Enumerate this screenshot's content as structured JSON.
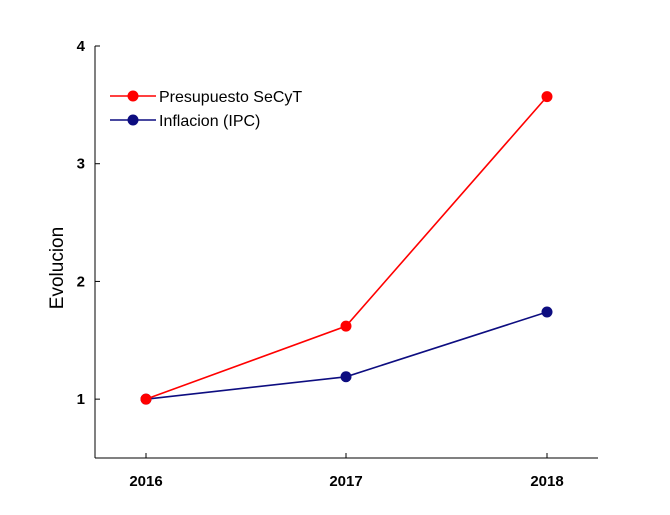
{
  "chart_data": {
    "type": "line",
    "title": "",
    "xlabel": "",
    "ylabel": "Evolucion",
    "x": [
      "2016",
      "2017",
      "2018"
    ],
    "ylim": [
      0.5,
      4
    ],
    "yticks": [
      "1",
      "2",
      "3",
      "4"
    ],
    "grid": false,
    "legend_position": "top-left",
    "series": [
      {
        "name": "Presupuesto SeCyT",
        "color": "#ff0000",
        "values": [
          1.0,
          1.62,
          3.57
        ]
      },
      {
        "name": "Inflacion (IPC)",
        "color": "#0d0d80",
        "values": [
          1.0,
          1.19,
          1.74
        ]
      }
    ]
  }
}
